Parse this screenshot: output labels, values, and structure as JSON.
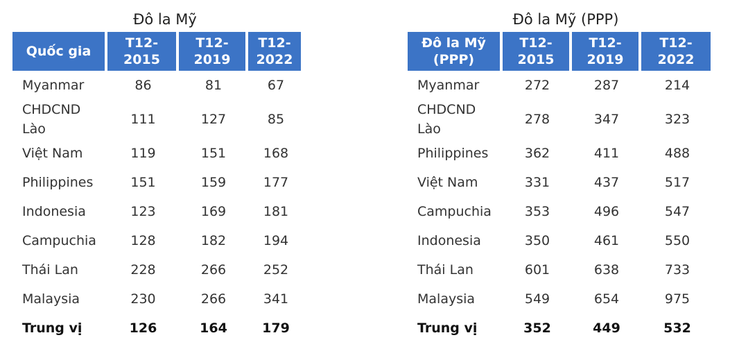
{
  "tables": [
    {
      "title": "Đô la Mỹ",
      "header": [
        "Quốc gia",
        "T12-2015",
        "T12-2019",
        "T12-2022"
      ],
      "rows": [
        [
          "Myanmar",
          86,
          81,
          67
        ],
        [
          "CHDCND Lào",
          111,
          127,
          85
        ],
        [
          "Việt Nam",
          119,
          151,
          168
        ],
        [
          "Philippines",
          151,
          159,
          177
        ],
        [
          "Indonesia",
          123,
          169,
          181
        ],
        [
          "Campuchia",
          128,
          182,
          194
        ],
        [
          "Thái Lan",
          228,
          266,
          252
        ],
        [
          "Malaysia",
          230,
          266,
          341
        ]
      ],
      "footer": [
        "Trung vị",
        126,
        164,
        179
      ]
    },
    {
      "title": "Đô la Mỹ (PPP)",
      "header": [
        "Đô la Mỹ (PPP)",
        "T12-2015",
        "T12-2019",
        "T12-2022"
      ],
      "rows": [
        [
          "Myanmar",
          272,
          287,
          214
        ],
        [
          "CHDCND Lào",
          278,
          347,
          323
        ],
        [
          "Philippines",
          362,
          411,
          488
        ],
        [
          "Việt Nam",
          331,
          437,
          517
        ],
        [
          "Campuchia",
          353,
          496,
          547
        ],
        [
          "Indonesia",
          350,
          461,
          550
        ],
        [
          "Thái Lan",
          601,
          638,
          733
        ],
        [
          "Malaysia",
          549,
          654,
          975
        ]
      ],
      "footer": [
        "Trung vị",
        352,
        449,
        532
      ]
    }
  ]
}
